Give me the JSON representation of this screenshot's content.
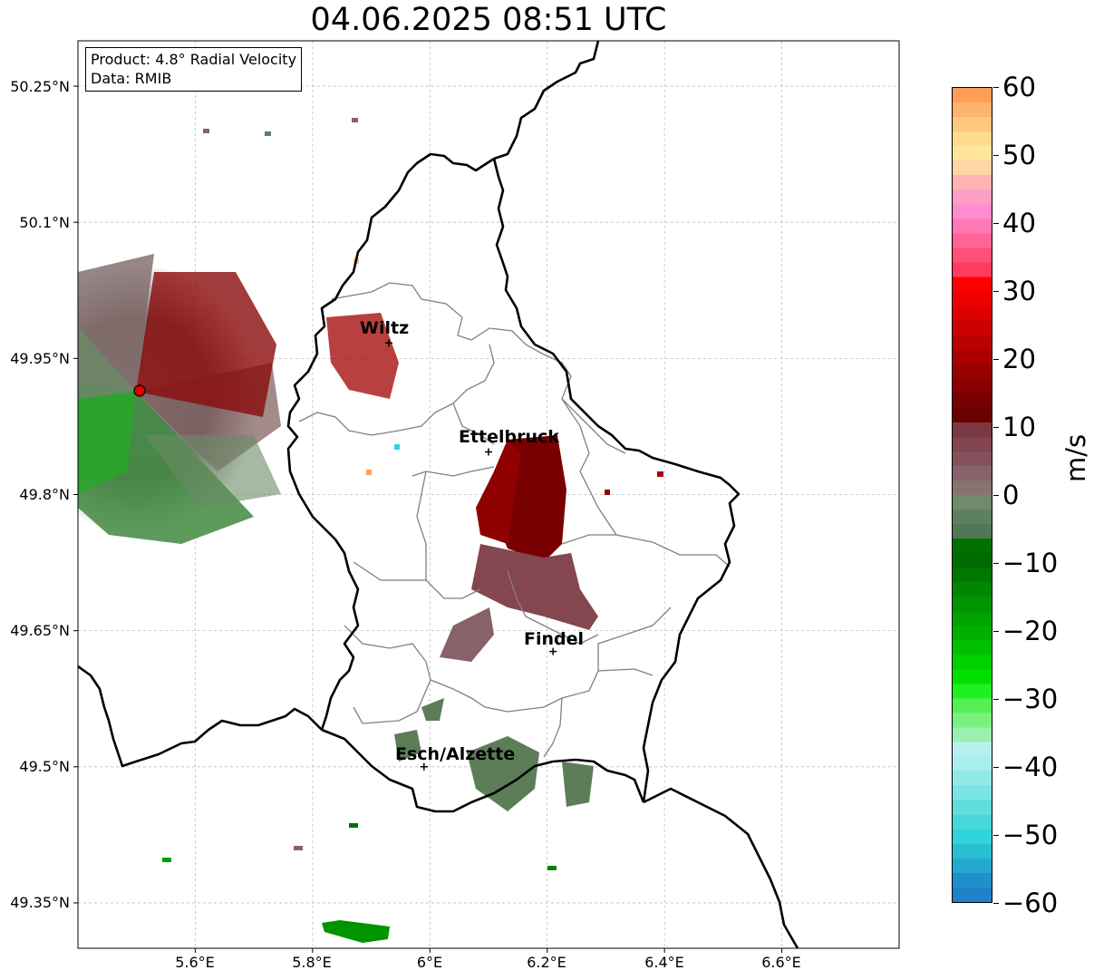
{
  "title": "04.06.2025 08:51 UTC",
  "info": {
    "product": "Product: 4.8° Radial Velocity",
    "data": "Data: RMIB"
  },
  "axes": {
    "lat_ticks": [
      "50.25°N",
      "50.1°N",
      "49.95°N",
      "49.8°N",
      "49.65°N",
      "49.5°N",
      "49.35°N"
    ],
    "lon_ticks": [
      "5.6°E",
      "5.8°E",
      "6°E",
      "6.2°E",
      "6.4°E",
      "6.6°E"
    ],
    "lon_range": [
      5.4,
      6.8
    ],
    "lat_range": [
      49.3,
      50.3
    ]
  },
  "cities": [
    {
      "name": "Wiltz",
      "lon": 5.93,
      "lat": 49.967
    },
    {
      "name": "Ettelbruck",
      "lon": 6.1,
      "lat": 49.847
    },
    {
      "name": "Findel",
      "lon": 6.21,
      "lat": 49.627
    },
    {
      "name": "Esch/Alzette",
      "lon": 5.99,
      "lat": 49.5
    }
  ],
  "radar_site": {
    "lon": 5.505,
    "lat": 49.915
  },
  "colorbar": {
    "label": "m/s",
    "min": -60,
    "max": 60,
    "tick_labels": [
      "60",
      "50",
      "40",
      "30",
      "20",
      "10",
      "0",
      "−10",
      "−20",
      "−30",
      "−40",
      "−50",
      "−60"
    ],
    "colors_top_to_bottom": [
      "#ff9e57",
      "#ffb46e",
      "#ffc77f",
      "#ffd98f",
      "#ffe69a",
      "#ffd6a8",
      "#ffb3b3",
      "#ff9ec4",
      "#ff8ccf",
      "#ff78b4",
      "#ff6495",
      "#ff5078",
      "#ff3c5f",
      "#ff0000",
      "#ee0000",
      "#dd0000",
      "#cc0000",
      "#bb0000",
      "#aa0000",
      "#990000",
      "#880000",
      "#770000",
      "#6a0000",
      "#7a3840",
      "#80454f",
      "#85505c",
      "#876268",
      "#857470",
      "#708a6a",
      "#5f8060",
      "#507858",
      "#007000",
      "#006a00",
      "#007800",
      "#008600",
      "#009400",
      "#00a200",
      "#00b000",
      "#00c000",
      "#00d000",
      "#00e000",
      "#20f020",
      "#55f055",
      "#7cf07c",
      "#9af0b0",
      "#b8f0f0",
      "#a8eeee",
      "#90e8e8",
      "#78e4e4",
      "#60dcdc",
      "#48d8d8",
      "#30d4dc",
      "#28c0d0",
      "#24a8d0",
      "#2090cc",
      "#2080c8"
    ]
  }
}
